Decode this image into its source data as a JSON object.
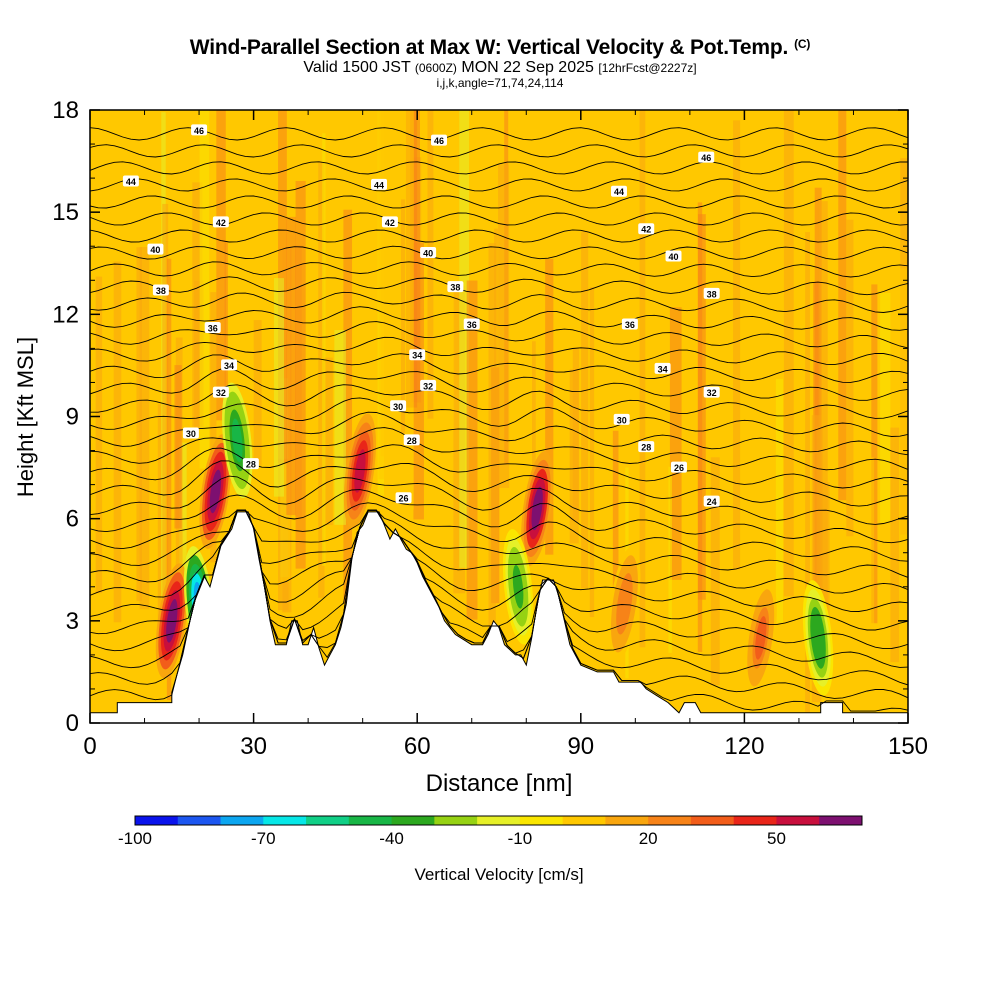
{
  "header": {
    "title": "Wind-Parallel Section at Max W: Vertical Velocity & Pot.Temp.",
    "title_mark": "(C)",
    "valid_a": "Valid 1500 JST",
    "valid_utc": "(0600Z)",
    "valid_b": "MON 22 Sep 2025",
    "forecast": "[12hrFcst@2227z]",
    "indices": "i,j,k,angle=71,74,24,114"
  },
  "chart_data": {
    "type": "heatmap",
    "xlabel": "Distance [nm]",
    "ylabel": "Height [Kft MSL]",
    "xlim": [
      0,
      150
    ],
    "ylim": [
      0,
      18
    ],
    "xticks": [
      0,
      30,
      60,
      90,
      120,
      150
    ],
    "yticks": [
      0,
      3,
      6,
      9,
      12,
      15,
      18
    ],
    "terrain_kft": [
      [
        0,
        0.3
      ],
      [
        5,
        0.3
      ],
      [
        5,
        0.6
      ],
      [
        15,
        0.6
      ],
      [
        15,
        0.9
      ],
      [
        17,
        2
      ],
      [
        19,
        3.5
      ],
      [
        21,
        4.3
      ],
      [
        22,
        4
      ],
      [
        24,
        5.2
      ],
      [
        26,
        5.7
      ],
      [
        27,
        6.2
      ],
      [
        29,
        6.2
      ],
      [
        30,
        5.7
      ],
      [
        31,
        4.8
      ],
      [
        32,
        4
      ],
      [
        33,
        3
      ],
      [
        34,
        2.3
      ],
      [
        36,
        2.3
      ],
      [
        37,
        3
      ],
      [
        38,
        3
      ],
      [
        39,
        2.3
      ],
      [
        40,
        2.3
      ],
      [
        41,
        2.8
      ],
      [
        42,
        2.2
      ],
      [
        43,
        1.7
      ],
      [
        44,
        2
      ],
      [
        45,
        2.3
      ],
      [
        46,
        2.8
      ],
      [
        47,
        3.5
      ],
      [
        48,
        4.8
      ],
      [
        49,
        5.6
      ],
      [
        50,
        5.8
      ],
      [
        51,
        6.2
      ],
      [
        53,
        6.2
      ],
      [
        54,
        5.8
      ],
      [
        55,
        5.4
      ],
      [
        56,
        5.7
      ],
      [
        57,
        5.4
      ],
      [
        58,
        5.1
      ],
      [
        59,
        5
      ],
      [
        60,
        4.7
      ],
      [
        61,
        4.3
      ],
      [
        62,
        4
      ],
      [
        63,
        3.7
      ],
      [
        64,
        3.4
      ],
      [
        65,
        3
      ],
      [
        67,
        2.6
      ],
      [
        69,
        2.4
      ],
      [
        70,
        2.3
      ],
      [
        72,
        2.3
      ],
      [
        73,
        2.6
      ],
      [
        74,
        3
      ],
      [
        75,
        2.8
      ],
      [
        76,
        2.3
      ],
      [
        78,
        2
      ],
      [
        79,
        2
      ],
      [
        80,
        1.7
      ],
      [
        81,
        2.5
      ],
      [
        82,
        3.5
      ],
      [
        83,
        4.2
      ],
      [
        85,
        4.2
      ],
      [
        86,
        3.7
      ],
      [
        87,
        3
      ],
      [
        88,
        2.3
      ],
      [
        89,
        2
      ],
      [
        90,
        1.7
      ],
      [
        93,
        1.5
      ],
      [
        96,
        1.5
      ],
      [
        97,
        1.2
      ],
      [
        101,
        1.2
      ],
      [
        102,
        1
      ],
      [
        104,
        0.8
      ],
      [
        106,
        0.6
      ],
      [
        108,
        0.3
      ],
      [
        109,
        0.6
      ],
      [
        111,
        0.6
      ],
      [
        112,
        0.3
      ],
      [
        125,
        0.3
      ],
      [
        134,
        0.3
      ],
      [
        134,
        0.6
      ],
      [
        138,
        0.6
      ],
      [
        138,
        0.3
      ],
      [
        150,
        0.3
      ]
    ],
    "colorbar": {
      "label": "Vertical Velocity [cm/s]",
      "tick_labels": [
        "-100",
        "-70",
        "-40",
        "-10",
        "20",
        "50"
      ],
      "tick_values": [
        -100,
        -70,
        -40,
        -10,
        20,
        50
      ],
      "bins": [
        -100,
        -90,
        -80,
        -70,
        -60,
        -50,
        -40,
        -30,
        -20,
        -10,
        0,
        10,
        20,
        30,
        40,
        50,
        60,
        70
      ],
      "colors": [
        "#0a13ec",
        "#1c56f0",
        "#0ca6f0",
        "#06e7e7",
        "#10cf86",
        "#18b646",
        "#2ca81f",
        "#96d213",
        "#e6f028",
        "#fae600",
        "#ffc800",
        "#f9a60e",
        "#f78318",
        "#f25d1a",
        "#e92519",
        "#c80f3d",
        "#7d1070"
      ]
    },
    "w_features": [
      {
        "x": 15,
        "z_kft": 3.0,
        "w_cms": 70
      },
      {
        "x": 23,
        "z_kft": 6.8,
        "w_cms": 70
      },
      {
        "x": 49.5,
        "z_kft": 7.4,
        "w_cms": 55
      },
      {
        "x": 82,
        "z_kft": 6.3,
        "w_cms": 65
      },
      {
        "x": 20,
        "z_kft": 3.5,
        "w_cms": -75
      },
      {
        "x": 27,
        "z_kft": 8.3,
        "w_cms": -45
      },
      {
        "x": 78.5,
        "z_kft": 4.0,
        "w_cms": -35
      },
      {
        "x": 133.5,
        "z_kft": 2.5,
        "w_cms": -40
      },
      {
        "x": 98,
        "z_kft": 3.5,
        "w_cms": 25
      },
      {
        "x": 123,
        "z_kft": 2.5,
        "w_cms": 30
      }
    ],
    "theta_labels": [
      {
        "text": "46",
        "x": 20,
        "z_kft": 17.4
      },
      {
        "text": "46",
        "x": 64,
        "z_kft": 17.1
      },
      {
        "text": "46",
        "x": 113,
        "z_kft": 16.6
      },
      {
        "text": "44",
        "x": 7.5,
        "z_kft": 15.9
      },
      {
        "text": "44",
        "x": 53,
        "z_kft": 15.8
      },
      {
        "text": "44",
        "x": 97,
        "z_kft": 15.6
      },
      {
        "text": "42",
        "x": 24,
        "z_kft": 14.7
      },
      {
        "text": "42",
        "x": 55,
        "z_kft": 14.7
      },
      {
        "text": "42",
        "x": 102,
        "z_kft": 14.5
      },
      {
        "text": "40",
        "x": 12,
        "z_kft": 13.9
      },
      {
        "text": "40",
        "x": 62,
        "z_kft": 13.8
      },
      {
        "text": "40",
        "x": 107,
        "z_kft": 13.7
      },
      {
        "text": "38",
        "x": 13,
        "z_kft": 12.7
      },
      {
        "text": "38",
        "x": 67,
        "z_kft": 12.8
      },
      {
        "text": "38",
        "x": 114,
        "z_kft": 12.6
      },
      {
        "text": "36",
        "x": 22.5,
        "z_kft": 11.6
      },
      {
        "text": "36",
        "x": 70,
        "z_kft": 11.7
      },
      {
        "text": "36",
        "x": 99,
        "z_kft": 11.7
      },
      {
        "text": "34",
        "x": 25.5,
        "z_kft": 10.5
      },
      {
        "text": "34",
        "x": 60,
        "z_kft": 10.8
      },
      {
        "text": "34",
        "x": 105,
        "z_kft": 10.4
      },
      {
        "text": "32",
        "x": 24,
        "z_kft": 9.7
      },
      {
        "text": "32",
        "x": 62,
        "z_kft": 9.9
      },
      {
        "text": "32",
        "x": 114,
        "z_kft": 9.7
      },
      {
        "text": "30",
        "x": 18.5,
        "z_kft": 8.5
      },
      {
        "text": "30",
        "x": 56.5,
        "z_kft": 9.3
      },
      {
        "text": "30",
        "x": 97.5,
        "z_kft": 8.9
      },
      {
        "text": "28",
        "x": 29.5,
        "z_kft": 7.6
      },
      {
        "text": "28",
        "x": 59,
        "z_kft": 8.3
      },
      {
        "text": "28",
        "x": 102,
        "z_kft": 8.1
      },
      {
        "text": "26",
        "x": 57.5,
        "z_kft": 6.6
      },
      {
        "text": "26",
        "x": 108,
        "z_kft": 7.5
      },
      {
        "text": "24",
        "x": 114,
        "z_kft": 6.5
      }
    ]
  }
}
